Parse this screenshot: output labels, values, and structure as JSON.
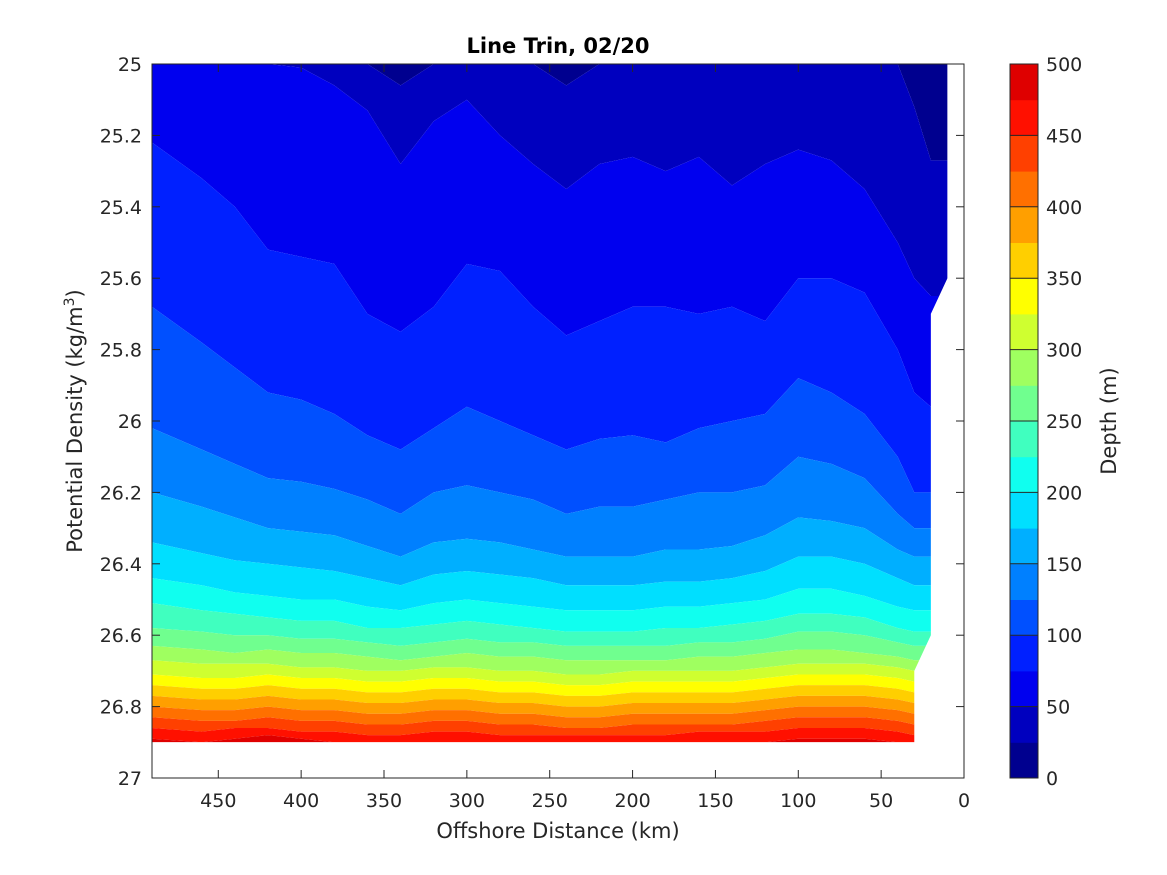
{
  "chart_data": {
    "type": "heatmap",
    "title": "Line Trin, 02/20",
    "xlabel": "Offshore Distance (km)",
    "ylabel_main": "Potential Density (kg/m",
    "ylabel_sup": "3",
    "ylabel_close": ")",
    "colorbar_label": "Depth (m)",
    "xlim": [
      490,
      0
    ],
    "ylim": [
      25,
      27
    ],
    "x_reversed": true,
    "y_reversed": true,
    "x_ticks": [
      "450",
      "400",
      "350",
      "300",
      "250",
      "200",
      "150",
      "100",
      "50",
      "0"
    ],
    "x_tick_values": [
      450,
      400,
      350,
      300,
      250,
      200,
      150,
      100,
      50,
      0
    ],
    "y_ticks": [
      "25",
      "25.2",
      "25.4",
      "25.6",
      "25.8",
      "26",
      "26.2",
      "26.4",
      "26.6",
      "26.8",
      "27"
    ],
    "y_tick_values": [
      25,
      25.2,
      25.4,
      25.6,
      25.8,
      26,
      26.2,
      26.4,
      26.6,
      26.8,
      27
    ],
    "colorbar_ticks": [
      "0",
      "50",
      "100",
      "150",
      "200",
      "250",
      "300",
      "350",
      "400",
      "450",
      "500"
    ],
    "colorbar_tick_values": [
      0,
      50,
      100,
      150,
      200,
      250,
      300,
      350,
      400,
      450,
      500
    ],
    "colorbar_range": [
      0,
      500
    ],
    "contour_step": 25,
    "colormap": "jet",
    "colors": [
      "#00008F",
      "#0000BF",
      "#0000EF",
      "#0020FF",
      "#0050FF",
      "#0080FF",
      "#00AFFF",
      "#00DFFF",
      "#10FFEF",
      "#40FFBF",
      "#70FF8F",
      "#9FFF60",
      "#CFFF30",
      "#FFFF00",
      "#FFCF00",
      "#FF9F00",
      "#FF7000",
      "#FF4000",
      "#FF1000",
      "#DF0000",
      "#AF0000"
    ],
    "x": [
      490,
      460,
      440,
      420,
      400,
      380,
      360,
      340,
      320,
      300,
      280,
      260,
      240,
      220,
      200,
      180,
      160,
      140,
      120,
      100,
      80,
      60,
      40,
      30,
      20
    ],
    "isolines": [
      {
        "level": 25,
        "y": [
          25.0,
          25.0,
          25.0,
          25.0,
          25.0,
          25.0,
          25.0,
          25.06,
          25.0,
          25.0,
          25.0,
          25.0,
          25.06,
          25.0,
          25.0,
          25.0,
          25.0,
          25.0,
          25.0,
          25.0,
          25.0,
          25.0,
          25.0,
          25.12,
          25.27
        ]
      },
      {
        "level": 50,
        "y": [
          25.0,
          25.0,
          25.0,
          25.0,
          25.01,
          25.06,
          25.13,
          25.28,
          25.16,
          25.1,
          25.2,
          25.28,
          25.35,
          25.28,
          25.26,
          25.3,
          25.26,
          25.34,
          25.28,
          25.24,
          25.27,
          25.35,
          25.5,
          25.6,
          25.65
        ]
      },
      {
        "level": 75,
        "y": [
          25.22,
          25.32,
          25.4,
          25.52,
          25.54,
          25.56,
          25.7,
          25.75,
          25.68,
          25.56,
          25.58,
          25.68,
          25.76,
          25.72,
          25.68,
          25.68,
          25.7,
          25.68,
          25.72,
          25.6,
          25.6,
          25.64,
          25.8,
          25.92,
          25.96
        ]
      },
      {
        "level": 100,
        "y": [
          25.68,
          25.78,
          25.85,
          25.92,
          25.94,
          25.98,
          26.04,
          26.08,
          26.02,
          25.96,
          26.0,
          26.04,
          26.08,
          26.05,
          26.04,
          26.06,
          26.02,
          26.0,
          25.98,
          25.88,
          25.92,
          25.98,
          26.1,
          26.2,
          26.2
        ]
      },
      {
        "level": 125,
        "y": [
          26.02,
          26.08,
          26.12,
          26.16,
          26.17,
          26.19,
          26.22,
          26.26,
          26.2,
          26.18,
          26.2,
          26.22,
          26.26,
          26.24,
          26.24,
          26.22,
          26.2,
          26.2,
          26.18,
          26.1,
          26.12,
          26.16,
          26.26,
          26.3,
          26.3
        ]
      },
      {
        "level": 150,
        "y": [
          26.2,
          26.24,
          26.27,
          26.3,
          26.31,
          26.32,
          26.35,
          26.38,
          26.34,
          26.33,
          26.34,
          26.36,
          26.38,
          26.38,
          26.38,
          26.36,
          26.36,
          26.35,
          26.32,
          26.27,
          26.28,
          26.3,
          26.36,
          26.38,
          26.38
        ]
      },
      {
        "level": 175,
        "y": [
          26.34,
          26.37,
          26.39,
          26.4,
          26.41,
          26.42,
          26.44,
          26.46,
          26.43,
          26.42,
          26.43,
          26.44,
          26.46,
          26.46,
          26.46,
          26.45,
          26.45,
          26.44,
          26.42,
          26.38,
          26.38,
          26.4,
          26.44,
          26.46,
          26.46
        ]
      },
      {
        "level": 200,
        "y": [
          26.44,
          26.46,
          26.48,
          26.49,
          26.5,
          26.5,
          26.52,
          26.53,
          26.51,
          26.5,
          26.51,
          26.52,
          26.53,
          26.53,
          26.53,
          26.52,
          26.52,
          26.51,
          26.5,
          26.47,
          26.47,
          26.49,
          26.52,
          26.53,
          26.53
        ]
      },
      {
        "level": 225,
        "y": [
          26.51,
          26.53,
          26.54,
          26.55,
          26.56,
          26.56,
          26.58,
          26.58,
          26.57,
          26.56,
          26.57,
          26.58,
          26.59,
          26.59,
          26.59,
          26.58,
          26.58,
          26.57,
          26.56,
          26.54,
          26.54,
          26.55,
          26.58,
          26.59,
          26.59
        ]
      },
      {
        "level": 250,
        "y": [
          26.58,
          26.59,
          26.6,
          26.6,
          26.61,
          26.61,
          26.62,
          26.63,
          26.62,
          26.61,
          26.62,
          26.62,
          26.63,
          26.63,
          26.63,
          26.63,
          26.62,
          26.62,
          26.61,
          26.59,
          26.59,
          26.6,
          26.62,
          26.63,
          26.63
        ]
      },
      {
        "level": 275,
        "y": [
          26.63,
          26.64,
          26.65,
          26.64,
          26.65,
          26.65,
          26.66,
          26.67,
          26.66,
          26.65,
          26.66,
          26.66,
          26.67,
          26.67,
          26.67,
          26.67,
          26.66,
          26.66,
          26.65,
          26.64,
          26.64,
          26.65,
          26.66,
          26.67,
          26.67
        ]
      },
      {
        "level": 300,
        "y": [
          26.67,
          26.68,
          26.68,
          26.68,
          26.69,
          26.69,
          26.7,
          26.7,
          26.69,
          26.69,
          26.7,
          26.7,
          26.71,
          26.71,
          26.7,
          26.7,
          26.7,
          26.7,
          26.69,
          26.68,
          26.68,
          26.68,
          26.69,
          26.7,
          26.7
        ]
      },
      {
        "level": 325,
        "y": [
          26.71,
          26.72,
          26.72,
          26.71,
          26.72,
          26.72,
          26.73,
          26.73,
          26.72,
          26.72,
          26.73,
          26.73,
          26.74,
          26.74,
          26.73,
          26.73,
          26.73,
          26.73,
          26.72,
          26.71,
          26.71,
          26.71,
          26.72,
          26.73,
          26.73
        ]
      },
      {
        "level": 350,
        "y": [
          26.74,
          26.75,
          26.75,
          26.74,
          26.75,
          26.75,
          26.76,
          26.76,
          26.75,
          26.75,
          26.76,
          26.76,
          26.77,
          26.77,
          26.76,
          26.76,
          26.76,
          26.76,
          26.75,
          26.74,
          26.74,
          26.74,
          26.75,
          26.76,
          26.76
        ]
      },
      {
        "level": 375,
        "y": [
          26.77,
          26.78,
          26.78,
          26.77,
          26.78,
          26.78,
          26.79,
          26.79,
          26.78,
          26.78,
          26.79,
          26.79,
          26.8,
          26.8,
          26.79,
          26.79,
          26.79,
          26.79,
          26.78,
          26.77,
          26.77,
          26.77,
          26.78,
          26.79,
          26.79
        ]
      },
      {
        "level": 400,
        "y": [
          26.8,
          26.81,
          26.81,
          26.8,
          26.81,
          26.81,
          26.82,
          26.82,
          26.81,
          26.81,
          26.82,
          26.82,
          26.83,
          26.83,
          26.82,
          26.82,
          26.82,
          26.82,
          26.81,
          26.8,
          26.8,
          26.8,
          26.81,
          26.82,
          26.82
        ]
      },
      {
        "level": 425,
        "y": [
          26.83,
          26.84,
          26.84,
          26.83,
          26.84,
          26.84,
          26.85,
          26.85,
          26.84,
          26.84,
          26.85,
          26.85,
          26.86,
          26.86,
          26.85,
          26.85,
          26.85,
          26.85,
          26.84,
          26.83,
          26.83,
          26.83,
          26.84,
          26.85,
          26.85
        ]
      },
      {
        "level": 450,
        "y": [
          26.86,
          26.87,
          26.86,
          26.86,
          26.87,
          26.87,
          26.88,
          26.88,
          26.87,
          26.87,
          26.88,
          26.88,
          26.88,
          26.88,
          26.88,
          26.88,
          26.87,
          26.87,
          26.87,
          26.86,
          26.86,
          26.86,
          26.87,
          26.88,
          26.88
        ]
      },
      {
        "level": 475,
        "y": [
          26.89,
          26.9,
          26.89,
          26.88,
          26.89,
          26.9,
          26.9,
          26.9,
          26.9,
          26.9,
          26.9,
          26.9,
          26.9,
          26.9,
          26.9,
          26.9,
          26.9,
          26.9,
          26.9,
          26.89,
          26.89,
          26.89,
          26.9,
          26.9,
          26.9
        ]
      }
    ],
    "data_bottom": 26.9,
    "data_right_edge": [
      [
        10,
        25.0
      ],
      [
        10,
        25.6
      ],
      [
        20,
        25.7
      ],
      [
        20,
        26.6
      ],
      [
        30,
        26.7
      ],
      [
        30,
        26.9
      ]
    ]
  }
}
